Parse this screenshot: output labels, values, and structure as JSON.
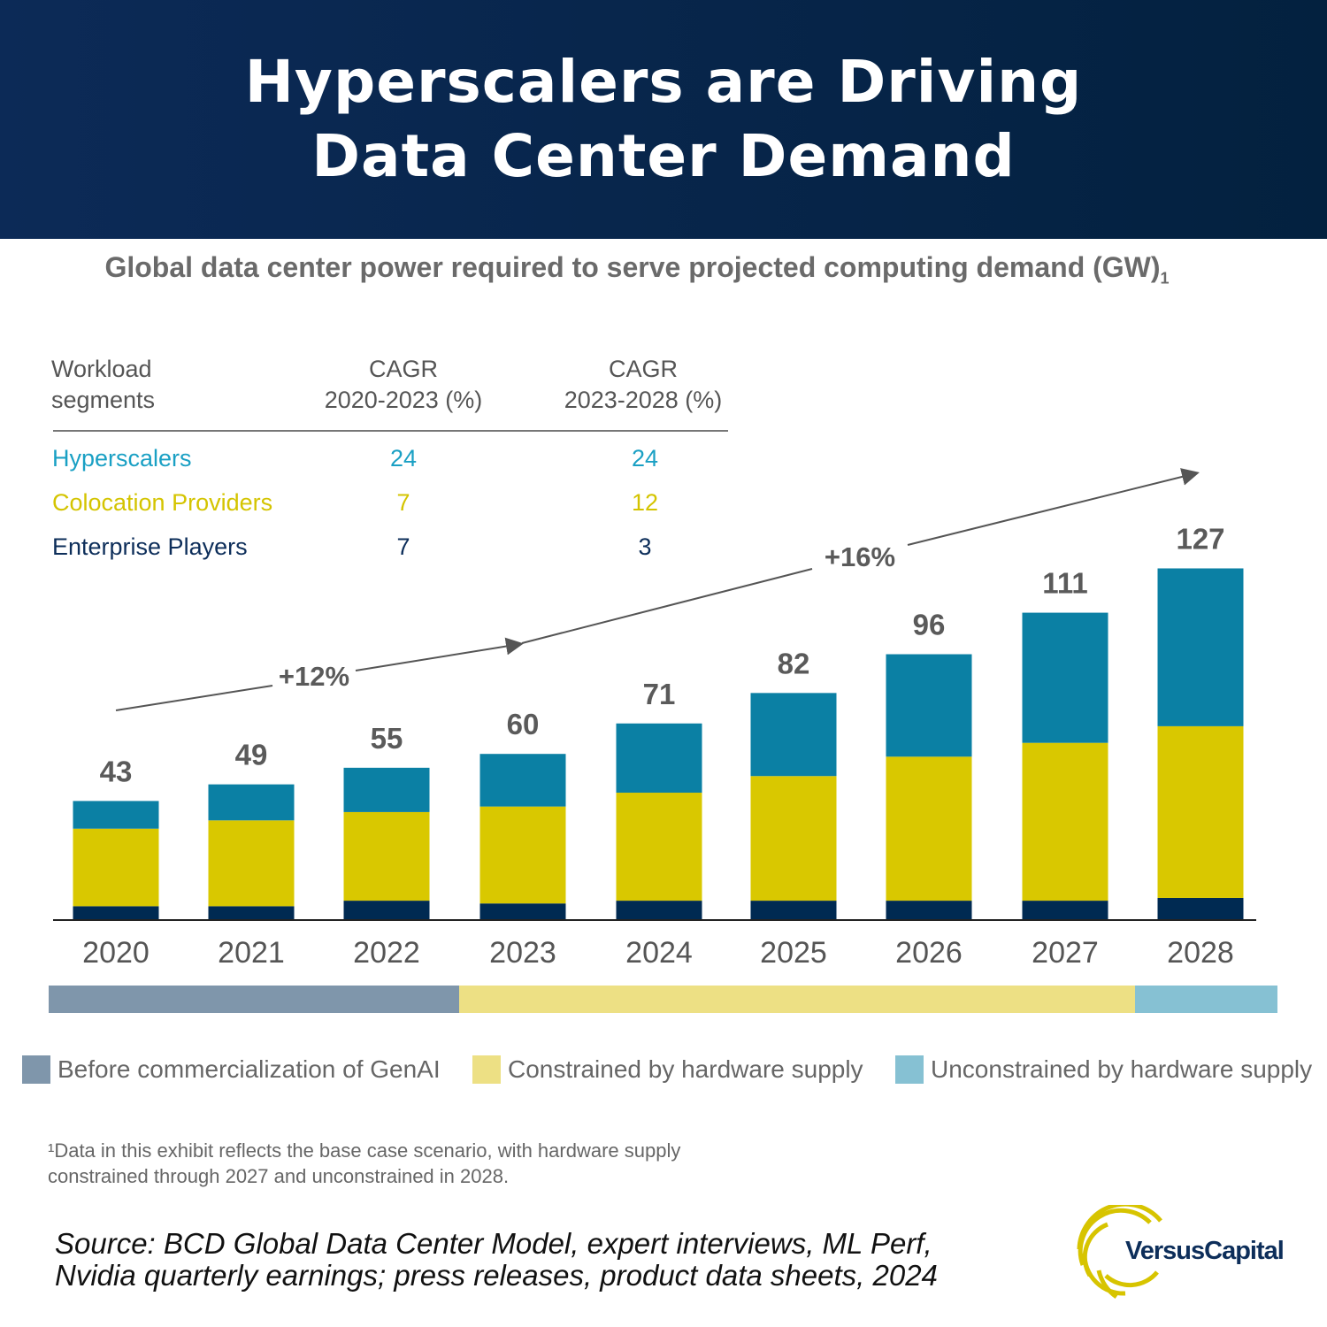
{
  "header": {
    "title_line1": "Hyperscalers are Driving",
    "title_line2": "Data Center Demand"
  },
  "subtitle": "Global data center power required to serve projected computing demand (GW)",
  "subtitle_note": "1",
  "table": {
    "headers": [
      [
        "Workload",
        "segments"
      ],
      [
        "CAGR",
        "2020-2023 (%)"
      ],
      [
        "CAGR",
        "2023-2028 (%)"
      ]
    ],
    "rows": [
      {
        "segment": "Hyperscalers",
        "cagr_2020_2023": "24",
        "cagr_2023_2028": "24",
        "color": "#1aa0c4"
      },
      {
        "segment": "Colocation Providers",
        "cagr_2020_2023": "7",
        "cagr_2023_2028": "12",
        "color": "#d4c400"
      },
      {
        "segment": "Enterprise Players",
        "cagr_2020_2023": "7",
        "cagr_2023_2028": "3",
        "color": "#0d2e5a"
      }
    ]
  },
  "chart_data": {
    "type": "bar",
    "stacked": true,
    "categories": [
      "2020",
      "2021",
      "2022",
      "2023",
      "2024",
      "2025",
      "2026",
      "2027",
      "2028"
    ],
    "totals": [
      43,
      49,
      55,
      60,
      71,
      82,
      96,
      111,
      127
    ],
    "series": [
      {
        "color": "#002a52",
        "values": [
          5,
          5,
          7,
          6,
          7,
          7,
          7,
          7,
          8
        ]
      },
      {
        "color": "#d9c800",
        "values": [
          28,
          31,
          32,
          35,
          39,
          45,
          52,
          57,
          62
        ]
      },
      {
        "color": "#0b80a4",
        "values": [
          10,
          13,
          16,
          19,
          25,
          30,
          37,
          47,
          57
        ]
      }
    ],
    "ylim": [
      0,
      130
    ],
    "annotations": [
      {
        "label": "+12%",
        "from": "2020",
        "to": "2023"
      },
      {
        "label": "+16%",
        "from": "2023",
        "to": "2028"
      }
    ],
    "timeline": [
      {
        "label": "Before commercialization of GenAI",
        "color": "#7f96ab"
      },
      {
        "label": "Constrained by hardware supply",
        "color": "#ede084"
      },
      {
        "label": "Unconstrained by hardware supply",
        "color": "#86c1d3"
      }
    ]
  },
  "footnote": [
    "¹Data in this exhibit reflects the base case scenario, with hardware supply",
    "constrained through 2027 and unconstrained in 2028."
  ],
  "source": [
    "Source: BCD Global Data Center Model, expert interviews, ML Perf,",
    "Nvidia quarterly earnings; press releases, product data sheets, 2024"
  ],
  "logo": "VersusCapital"
}
